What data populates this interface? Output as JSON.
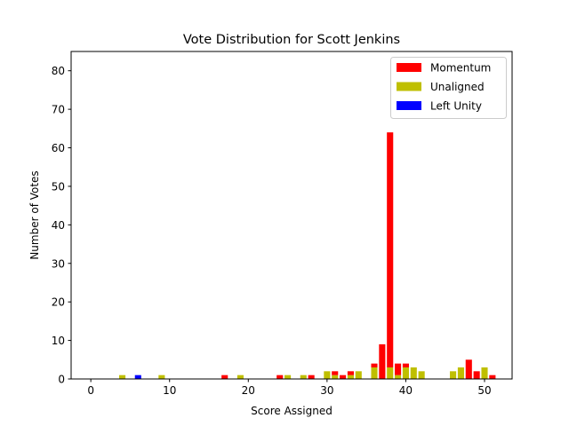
{
  "chart_data": {
    "type": "bar",
    "stacked": true,
    "title": "Vote Distribution for Scott Jenkins",
    "xlabel": "Score Assigned",
    "ylabel": "Number of Votes",
    "xlim": [
      -2.5,
      53.5
    ],
    "ylim": [
      0,
      85
    ],
    "xticks": [
      0,
      10,
      20,
      30,
      40,
      50
    ],
    "yticks": [
      0,
      10,
      20,
      30,
      40,
      50,
      60,
      70,
      80
    ],
    "grid": false,
    "legend_position": "top-right",
    "x": [
      4,
      6,
      9,
      17,
      19,
      24,
      25,
      27,
      28,
      30,
      31,
      32,
      33,
      34,
      36,
      37,
      38,
      39,
      40,
      41,
      42,
      46,
      47,
      48,
      49,
      50,
      51
    ],
    "series": [
      {
        "name": "Unaligned",
        "color": "#bfbf00",
        "values": [
          1,
          0,
          1,
          0,
          1,
          0,
          1,
          1,
          0,
          2,
          1,
          0,
          1,
          2,
          3,
          0,
          3,
          1,
          3,
          3,
          2,
          2,
          3,
          0,
          0,
          3,
          0
        ]
      },
      {
        "name": "Momentum",
        "color": "#ff0000",
        "values": [
          0,
          0,
          0,
          1,
          0,
          1,
          0,
          0,
          1,
          0,
          1,
          1,
          1,
          0,
          1,
          9,
          61,
          3,
          1,
          0,
          0,
          0,
          0,
          5,
          2,
          0,
          1
        ]
      },
      {
        "name": "Left Unity",
        "color": "#0000ff",
        "values": [
          0,
          1,
          0,
          0,
          0,
          0,
          0,
          0,
          0,
          0,
          0,
          0,
          0,
          0,
          0,
          0,
          0,
          0,
          0,
          0,
          0,
          0,
          0,
          0,
          0,
          0,
          0
        ]
      }
    ],
    "legend_order": [
      "Momentum",
      "Unaligned",
      "Left Unity"
    ]
  }
}
